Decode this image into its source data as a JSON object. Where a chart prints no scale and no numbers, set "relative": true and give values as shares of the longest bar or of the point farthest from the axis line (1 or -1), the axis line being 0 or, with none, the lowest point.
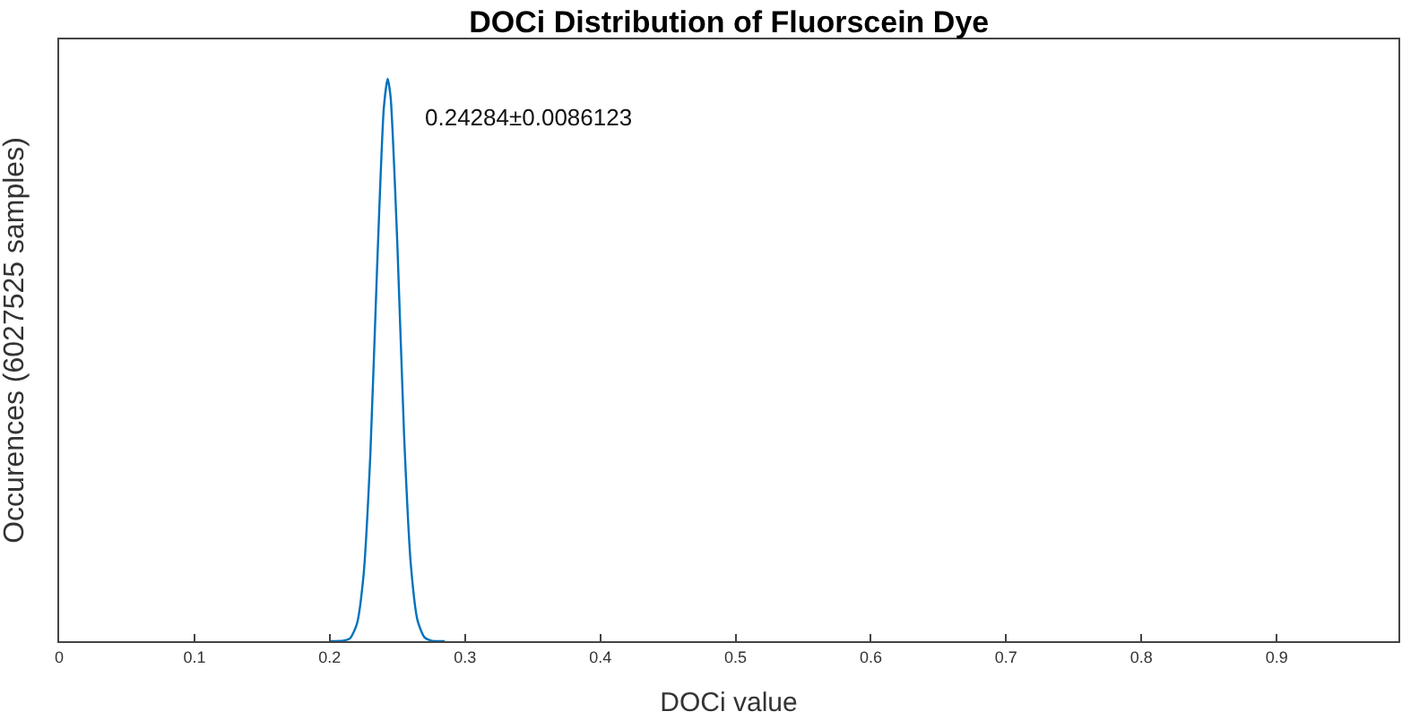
{
  "chart_data": {
    "type": "line",
    "title": "DOCi Distribution of Fluorscein Dye",
    "xlabel": "DOCi value",
    "ylabel": "Occurences (6027525 samples)",
    "relative": true,
    "xlim": [
      0,
      0.99
    ],
    "xticks": [
      0,
      0.1,
      0.2,
      0.3,
      0.4,
      0.5,
      0.6,
      0.7,
      0.8,
      0.9
    ],
    "annotations": [
      "0.24284±0.0086123"
    ],
    "series": [
      {
        "color": "#0072bd",
        "x": [
          0.2,
          0.21,
          0.215,
          0.22,
          0.225,
          0.23,
          0.235,
          0.24,
          0.2428,
          0.245,
          0.25,
          0.255,
          0.26,
          0.265,
          0.27,
          0.275,
          0.28,
          0.285
        ],
        "values": [
          0,
          0.001,
          0.005,
          0.03,
          0.117,
          0.33,
          0.663,
          0.948,
          1,
          0.968,
          0.705,
          0.365,
          0.135,
          0.036,
          0.007,
          0.001,
          0,
          0
        ]
      }
    ]
  }
}
